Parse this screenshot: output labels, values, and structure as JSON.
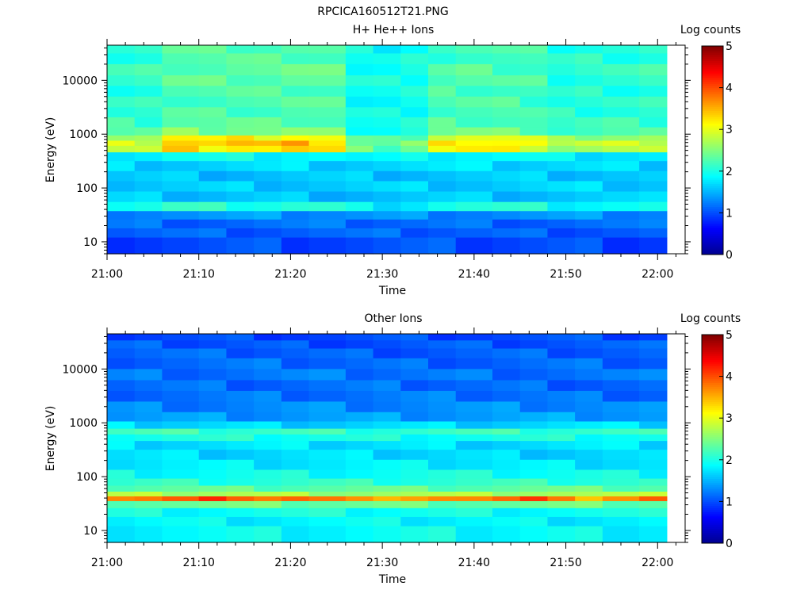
{
  "figure_title": "RPCICA160512T21.PNG",
  "colormap": [
    "#00008f",
    "#0000ff",
    "#0080ff",
    "#00ffff",
    "#80ff80",
    "#ffff00",
    "#ff8000",
    "#ff0000",
    "#800000"
  ],
  "chart_data": [
    {
      "type": "heatmap",
      "title": "H+ He++ Ions",
      "xlabel": "Time",
      "ylabel": "Energy (eV)",
      "colorbar_label": "Log counts",
      "colorbar_ticks": [
        "0",
        "1",
        "2",
        "3",
        "4",
        "5"
      ],
      "clim": [
        0,
        5
      ],
      "x_scale": "time",
      "y_scale": "log",
      "xlim": [
        "21:00",
        "22:03"
      ],
      "ylim": [
        6,
        45000
      ],
      "x_ticks": [
        "21:00",
        "21:10",
        "21:20",
        "21:30",
        "21:40",
        "21:50",
        "22:00"
      ],
      "y_ticks": [
        "10",
        "100",
        "1000",
        "10000"
      ],
      "time_bins": [
        "21:00",
        "21:03",
        "21:06",
        "21:10",
        "21:13",
        "21:16",
        "21:19",
        "21:22",
        "21:26",
        "21:29",
        "21:32",
        "21:35",
        "21:38",
        "21:42",
        "21:45",
        "21:48",
        "21:51",
        "21:54",
        "21:58",
        "22:01"
      ],
      "energy_bins_eV": [
        10,
        15,
        22,
        32,
        45,
        70,
        110,
        170,
        260,
        400,
        550,
        700,
        850,
        1100,
        1700,
        2600,
        4000,
        6500,
        10000,
        16000,
        26000,
        40000
      ],
      "base_profile": [
        1.0,
        1.1,
        1.15,
        1.35,
        1.95,
        1.6,
        1.65,
        1.6,
        1.7,
        1.85,
        2.8,
        2.9,
        2.7,
        2.25,
        2.15,
        2.1,
        2.1,
        2.1,
        2.15,
        2.15,
        2.1,
        2.1
      ],
      "peak_offsets": [
        0,
        0,
        0.55,
        0.45,
        0.55,
        0.45,
        0.6,
        0.45,
        -0.45,
        -0.55,
        -0.35,
        0.3,
        0.4,
        0.35,
        0.25,
        -0.15,
        -0.1,
        -0.05,
        0,
        0
      ]
    },
    {
      "type": "heatmap",
      "title": "Other Ions",
      "xlabel": "Time",
      "ylabel": "Energy (eV)",
      "colorbar_label": "Log counts",
      "colorbar_ticks": [
        "0",
        "1",
        "2",
        "3",
        "4",
        "5"
      ],
      "clim": [
        0,
        5
      ],
      "x_scale": "time",
      "y_scale": "log",
      "xlim": [
        "21:00",
        "22:03"
      ],
      "ylim": [
        6,
        45000
      ],
      "x_ticks": [
        "21:00",
        "21:10",
        "21:20",
        "21:30",
        "21:40",
        "21:50",
        "22:00"
      ],
      "y_ticks": [
        "10",
        "100",
        "1000",
        "10000"
      ],
      "time_bins": [
        "21:00",
        "21:03",
        "21:06",
        "21:10",
        "21:13",
        "21:16",
        "21:19",
        "21:22",
        "21:26",
        "21:29",
        "21:32",
        "21:35",
        "21:38",
        "21:42",
        "21:45",
        "21:48",
        "21:51",
        "21:54",
        "21:58",
        "22:01"
      ],
      "energy_bins_eV": [
        10,
        15,
        22,
        32,
        40,
        48,
        60,
        80,
        110,
        170,
        260,
        400,
        550,
        700,
        900,
        1300,
        2000,
        3200,
        5000,
        8000,
        13000,
        20000,
        30000,
        40000
      ],
      "base_profile": [
        1.9,
        1.85,
        1.95,
        2.4,
        3.75,
        2.7,
        2.35,
        2.1,
        1.95,
        1.8,
        1.7,
        1.75,
        2.0,
        2.15,
        1.7,
        1.4,
        1.3,
        1.2,
        1.15,
        1.2,
        1.15,
        1.1,
        1.05,
        1.0
      ],
      "peak_offsets": [
        0,
        0,
        0.1,
        0.3,
        0.3,
        0.1,
        0.15,
        0,
        -0.2,
        -0.1,
        -0.05,
        0,
        -0.05,
        0.05,
        0.25,
        0.2,
        -0.25,
        -0.05,
        0.15,
        0.1
      ]
    }
  ]
}
